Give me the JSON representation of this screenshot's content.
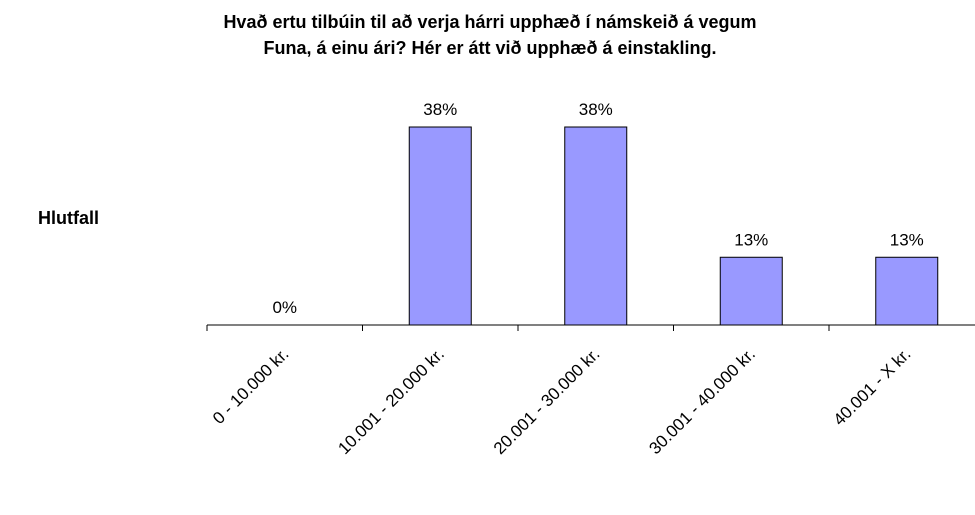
{
  "chart_data": {
    "type": "bar",
    "title": [
      "Hvað ertu tilbúin til að verja hárri upphæð í námskeið á vegum",
      "Funa, á einu ári? Hér er átt við upphæð á einstakling."
    ],
    "y_label": "Hlutfall",
    "categories": [
      "0 - 10.000 kr.",
      "10.001 - 20.000 kr.",
      "20.001 - 30.000 kr.",
      "30.001 - 40.000 kr.",
      "40.001 - X kr."
    ],
    "values": [
      0,
      38,
      38,
      13,
      13
    ],
    "value_labels": [
      "0%",
      "38%",
      "38%",
      "13%",
      "13%"
    ],
    "color": "#9999ff"
  }
}
